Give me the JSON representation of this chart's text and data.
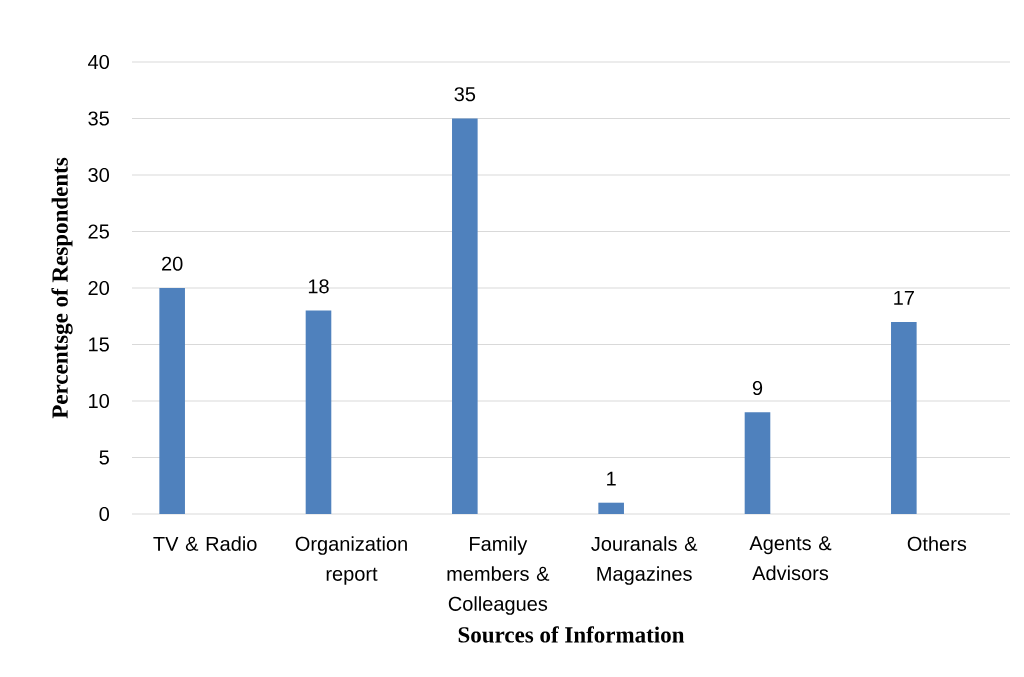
{
  "chart_data": {
    "type": "bar",
    "xlabel": "Sources of Information",
    "ylabel": "Percentsge of Respondents",
    "categories": [
      "TV & Radio",
      "Organization report",
      "Family members & Colleagues",
      "Jouranals & Magazines",
      "Agents & Advisors",
      "Others"
    ],
    "values": [
      20,
      18,
      35,
      1,
      9,
      17
    ],
    "color": "#4f81bd",
    "ylim": [
      0,
      40
    ],
    "yticks": [
      0,
      5,
      10,
      15,
      20,
      25,
      30,
      35,
      40
    ],
    "grid": "y",
    "data_labels": true
  }
}
